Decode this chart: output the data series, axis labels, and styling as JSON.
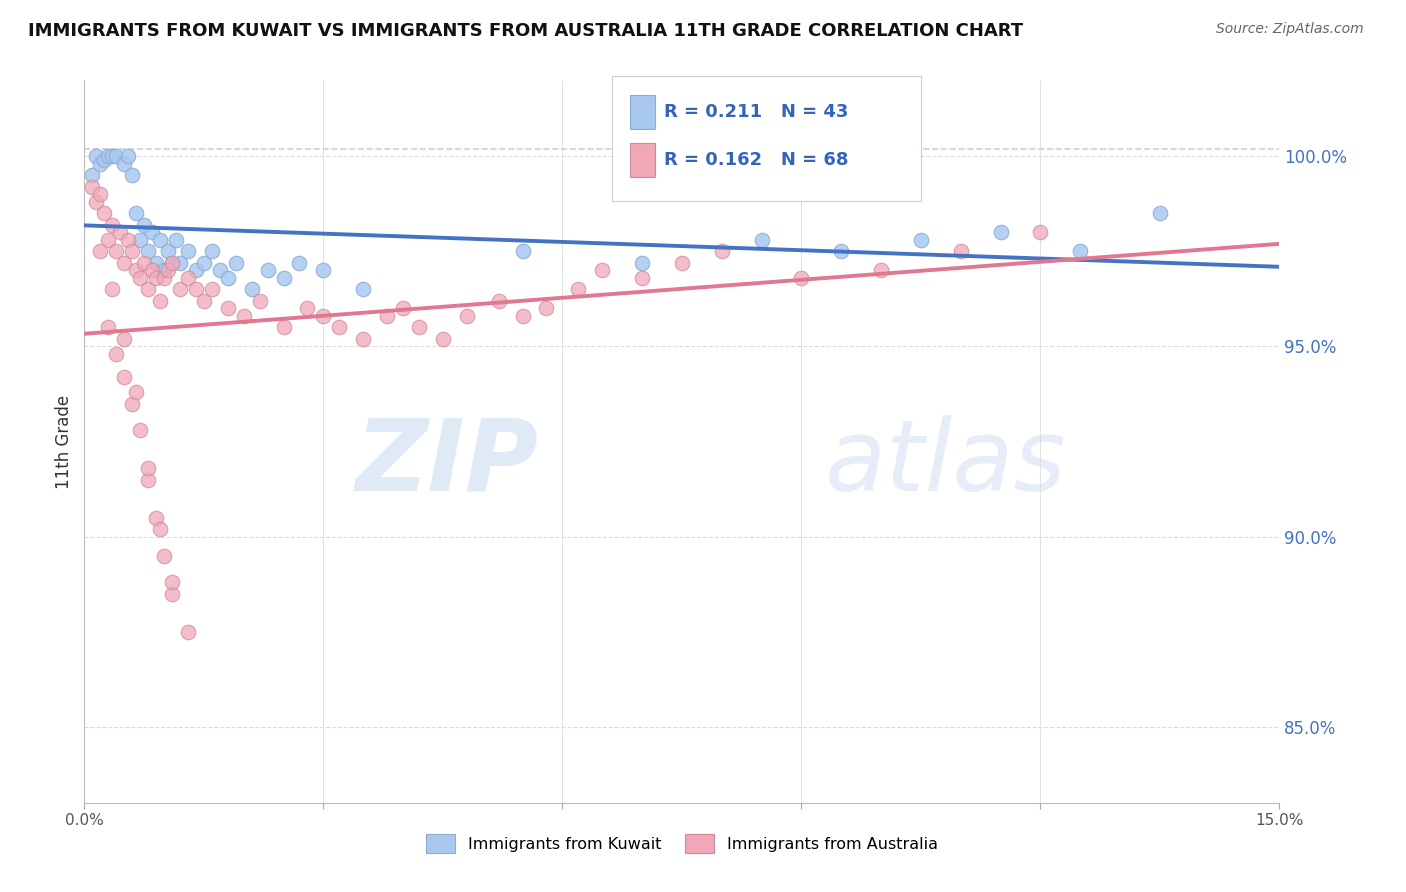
{
  "title": "IMMIGRANTS FROM KUWAIT VS IMMIGRANTS FROM AUSTRALIA 11TH GRADE CORRELATION CHART",
  "source": "Source: ZipAtlas.com",
  "ylabel": "11th Grade",
  "xlim": [
    0.0,
    15.0
  ],
  "ylim": [
    83.0,
    102.0
  ],
  "ytick_values_right": [
    85.0,
    90.0,
    95.0,
    100.0
  ],
  "blue_color": "#A8C8F0",
  "pink_color": "#F0A8B8",
  "blue_line_color": "#4472C4",
  "pink_line_color": "#E07890",
  "dashed_line_color": "#B0C8E8",
  "legend_R_blue": "0.211",
  "legend_N_blue": "43",
  "legend_R_pink": "0.162",
  "legend_N_pink": "68",
  "watermark_zip": "ZIP",
  "watermark_atlas": "atlas",
  "blue_scatter_x": [
    0.1,
    0.15,
    0.2,
    0.25,
    0.3,
    0.35,
    0.4,
    0.5,
    0.55,
    0.6,
    0.65,
    0.7,
    0.75,
    0.8,
    0.85,
    0.9,
    0.95,
    1.0,
    1.05,
    1.1,
    1.15,
    1.2,
    1.3,
    1.4,
    1.5,
    1.6,
    1.7,
    1.8,
    1.9,
    2.1,
    2.3,
    2.5,
    2.7,
    3.0,
    3.5,
    5.5,
    7.0,
    8.5,
    9.5,
    10.5,
    11.5,
    12.5,
    13.5
  ],
  "blue_scatter_y": [
    99.5,
    100.0,
    99.8,
    99.9,
    100.0,
    100.0,
    100.0,
    99.8,
    100.0,
    99.5,
    98.5,
    97.8,
    98.2,
    97.5,
    98.0,
    97.2,
    97.8,
    97.0,
    97.5,
    97.2,
    97.8,
    97.2,
    97.5,
    97.0,
    97.2,
    97.5,
    97.0,
    96.8,
    97.2,
    96.5,
    97.0,
    96.8,
    97.2,
    97.0,
    96.5,
    97.5,
    97.2,
    97.8,
    97.5,
    97.8,
    98.0,
    97.5,
    98.5
  ],
  "pink_scatter_x": [
    0.1,
    0.15,
    0.2,
    0.25,
    0.3,
    0.35,
    0.4,
    0.45,
    0.5,
    0.55,
    0.6,
    0.65,
    0.7,
    0.75,
    0.8,
    0.85,
    0.9,
    0.95,
    1.0,
    1.05,
    1.1,
    1.2,
    1.3,
    1.4,
    1.5,
    1.6,
    1.8,
    2.0,
    2.2,
    2.5,
    2.8,
    3.0,
    3.2,
    3.5,
    3.8,
    4.0,
    4.2,
    4.5,
    4.8,
    5.2,
    5.5,
    5.8,
    6.2,
    6.5,
    7.0,
    7.5,
    8.0,
    9.0,
    10.0,
    11.0,
    12.0,
    0.3,
    0.4,
    0.5,
    0.6,
    0.7,
    0.8,
    0.9,
    1.0,
    1.1,
    0.2,
    0.35,
    0.5,
    0.65,
    0.8,
    0.95,
    1.1,
    1.3
  ],
  "pink_scatter_y": [
    99.2,
    98.8,
    99.0,
    98.5,
    97.8,
    98.2,
    97.5,
    98.0,
    97.2,
    97.8,
    97.5,
    97.0,
    96.8,
    97.2,
    96.5,
    97.0,
    96.8,
    96.2,
    96.8,
    97.0,
    97.2,
    96.5,
    96.8,
    96.5,
    96.2,
    96.5,
    96.0,
    95.8,
    96.2,
    95.5,
    96.0,
    95.8,
    95.5,
    95.2,
    95.8,
    96.0,
    95.5,
    95.2,
    95.8,
    96.2,
    95.8,
    96.0,
    96.5,
    97.0,
    96.8,
    97.2,
    97.5,
    96.8,
    97.0,
    97.5,
    98.0,
    95.5,
    94.8,
    94.2,
    93.5,
    92.8,
    91.5,
    90.5,
    89.5,
    88.5,
    97.5,
    96.5,
    95.2,
    93.8,
    91.8,
    90.2,
    88.8,
    87.5
  ]
}
